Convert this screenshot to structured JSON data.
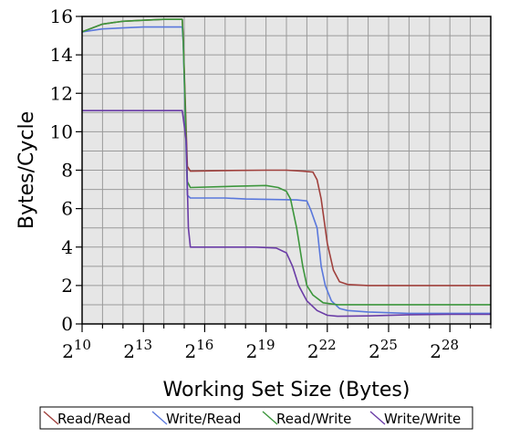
{
  "chart_data": {
    "type": "line",
    "xlabel": "Working Set Size (Bytes)",
    "ylabel": "Bytes/Cycle",
    "x_scale": "log2",
    "xlim_exp": [
      10,
      30
    ],
    "ylim": [
      0,
      16
    ],
    "x_tick_exponents": [
      10,
      13,
      16,
      19,
      22,
      25,
      28
    ],
    "x_tick_base": "2",
    "y_ticks": [
      0,
      2,
      4,
      6,
      8,
      10,
      12,
      14,
      16
    ],
    "grid": true,
    "legend_position": "bottom",
    "colors": {
      "read_read": "#a0403c",
      "write_read": "#5a78dc",
      "read_write": "#3c963c",
      "write_write": "#6a3ca6",
      "grid": "#9a9a9a",
      "plot_bg": "#e6e6e6"
    },
    "series": [
      {
        "name": "Read/Read",
        "color_key": "read_read",
        "points": [
          [
            10,
            15.2
          ],
          [
            11,
            15.6
          ],
          [
            12,
            15.75
          ],
          [
            13,
            15.8
          ],
          [
            14,
            15.85
          ],
          [
            14.9,
            15.85
          ],
          [
            14.95,
            14.8
          ],
          [
            15.15,
            8.2
          ],
          [
            15.3,
            7.95
          ],
          [
            17,
            7.98
          ],
          [
            19,
            8.0
          ],
          [
            20,
            8.0
          ],
          [
            20.8,
            7.95
          ],
          [
            21.3,
            7.9
          ],
          [
            21.5,
            7.5
          ],
          [
            21.7,
            6.5
          ],
          [
            22,
            4.2
          ],
          [
            22.3,
            2.8
          ],
          [
            22.6,
            2.2
          ],
          [
            23,
            2.05
          ],
          [
            24,
            2.0
          ],
          [
            26,
            2.0
          ],
          [
            28,
            2.0
          ],
          [
            30,
            2.0
          ]
        ]
      },
      {
        "name": "Write/Read",
        "color_key": "write_read",
        "points": [
          [
            10,
            15.2
          ],
          [
            11,
            15.35
          ],
          [
            12,
            15.4
          ],
          [
            13,
            15.45
          ],
          [
            14,
            15.45
          ],
          [
            14.9,
            15.45
          ],
          [
            14.95,
            14.6
          ],
          [
            15.15,
            6.7
          ],
          [
            15.3,
            6.55
          ],
          [
            17,
            6.55
          ],
          [
            18,
            6.5
          ],
          [
            20.5,
            6.45
          ],
          [
            21,
            6.4
          ],
          [
            21.2,
            5.9
          ],
          [
            21.5,
            5.0
          ],
          [
            21.7,
            3.0
          ],
          [
            21.9,
            2.0
          ],
          [
            22.2,
            1.2
          ],
          [
            22.6,
            0.8
          ],
          [
            23,
            0.7
          ],
          [
            24,
            0.62
          ],
          [
            26,
            0.55
          ],
          [
            28,
            0.55
          ],
          [
            30,
            0.55
          ]
        ]
      },
      {
        "name": "Read/Write",
        "color_key": "read_write",
        "points": [
          [
            10,
            15.2
          ],
          [
            11,
            15.6
          ],
          [
            12,
            15.75
          ],
          [
            13,
            15.8
          ],
          [
            14,
            15.85
          ],
          [
            14.9,
            15.85
          ],
          [
            14.95,
            14.7
          ],
          [
            15.15,
            7.4
          ],
          [
            15.3,
            7.1
          ],
          [
            17,
            7.15
          ],
          [
            19,
            7.2
          ],
          [
            19.6,
            7.1
          ],
          [
            20,
            6.9
          ],
          [
            20.2,
            6.5
          ],
          [
            20.5,
            5.0
          ],
          [
            20.8,
            3.0
          ],
          [
            21,
            2.0
          ],
          [
            21.3,
            1.5
          ],
          [
            21.8,
            1.1
          ],
          [
            22.5,
            1.0
          ],
          [
            24,
            1.0
          ],
          [
            26,
            1.0
          ],
          [
            28,
            1.0
          ],
          [
            30,
            1.0
          ]
        ]
      },
      {
        "name": "Write/Write",
        "color_key": "write_write",
        "points": [
          [
            10,
            11.1
          ],
          [
            11,
            11.1
          ],
          [
            12,
            11.1
          ],
          [
            13,
            11.1
          ],
          [
            14,
            11.1
          ],
          [
            14.9,
            11.1
          ],
          [
            15.1,
            9.5
          ],
          [
            15.2,
            5.0
          ],
          [
            15.3,
            4.0
          ],
          [
            17,
            4.0
          ],
          [
            18.5,
            4.0
          ],
          [
            19.5,
            3.95
          ],
          [
            20,
            3.7
          ],
          [
            20.3,
            3.0
          ],
          [
            20.6,
            2.0
          ],
          [
            21,
            1.2
          ],
          [
            21.5,
            0.7
          ],
          [
            22,
            0.45
          ],
          [
            22.5,
            0.4
          ],
          [
            24,
            0.42
          ],
          [
            26,
            0.48
          ],
          [
            28,
            0.5
          ],
          [
            30,
            0.5
          ]
        ]
      }
    ]
  }
}
